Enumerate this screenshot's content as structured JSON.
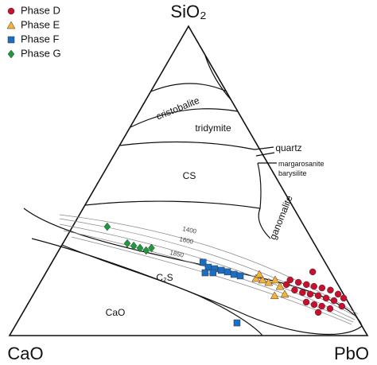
{
  "chart_data": {
    "type": "ternary",
    "vertex_labels": [
      "SiO₂",
      "CaO",
      "PbO"
    ],
    "annotations": [
      "cristobalite",
      "tridymite",
      "quartz",
      "CS",
      "margarosanite",
      "barysilite",
      "ganomalite",
      "C₂S",
      "CaO",
      "1400",
      "1600",
      "1850"
    ],
    "series": [
      {
        "name": "Phase D",
        "color": "#c8102e",
        "marker": "circle",
        "values": [
          [
            20.6,
            5.0,
            74.4
          ],
          [
            18.0,
            12.6,
            69.4
          ],
          [
            17.2,
            10.7,
            72.1
          ],
          [
            16.5,
            8.8,
            74.7
          ],
          [
            15.9,
            7.0,
            77.1
          ],
          [
            15.4,
            5.0,
            79.6
          ],
          [
            14.7,
            3.0,
            82.3
          ],
          [
            13.4,
            1.5,
            85.1
          ],
          [
            14.7,
            13.0,
            72.3
          ],
          [
            13.9,
            11.2,
            74.9
          ],
          [
            13.4,
            9.3,
            77.3
          ],
          [
            12.9,
            7.3,
            79.8
          ],
          [
            12.1,
            5.5,
            82.4
          ],
          [
            11.3,
            3.7,
            85.0
          ],
          [
            10.8,
            11.7,
            77.5
          ],
          [
            10.0,
            9.9,
            80.1
          ],
          [
            9.5,
            8.0,
            82.5
          ],
          [
            8.7,
            6.1,
            85.2
          ],
          [
            9.5,
            2.4,
            88.1
          ],
          [
            7.5,
            10.0,
            82.5
          ],
          [
            16.5,
            14.4,
            69.1
          ],
          [
            12.1,
            0.6,
            87.3
          ]
        ]
      },
      {
        "name": "Phase E",
        "color": "#f5b23a",
        "marker": "triangle",
        "values": [
          [
            18.5,
            21.9,
            59.6
          ],
          [
            18.0,
            20.3,
            61.7
          ],
          [
            17.2,
            19.0,
            63.8
          ],
          [
            18.0,
            16.8,
            65.2
          ],
          [
            15.9,
            16.5,
            67.6
          ],
          [
            12.9,
            19.5,
            67.6
          ],
          [
            13.4,
            16.4,
            70.2
          ],
          [
            19.8,
            20.3,
            59.9
          ]
        ]
      },
      {
        "name": "Phase F",
        "color": "#1a6fc4",
        "marker": "square",
        "values": [
          [
            23.7,
            34.1,
            42.2
          ],
          [
            22.1,
            33.4,
            44.5
          ],
          [
            21.6,
            31.9,
            46.5
          ],
          [
            21.1,
            30.3,
            48.6
          ],
          [
            20.6,
            28.8,
            50.6
          ],
          [
            19.8,
            27.4,
            52.8
          ],
          [
            19.3,
            25.9,
            54.8
          ],
          [
            20.3,
            33.0,
            46.7
          ],
          [
            20.3,
            35.2,
            44.5
          ],
          [
            4.1,
            34.4,
            61.5
          ]
        ]
      },
      {
        "name": "Phase G",
        "color": "#1e9a3c",
        "marker": "diamond",
        "values": [
          [
            35.2,
            55.1,
            9.7
          ],
          [
            29.8,
            52.2,
            18.0
          ],
          [
            29.0,
            50.8,
            20.2
          ],
          [
            28.3,
            49.4,
            22.3
          ],
          [
            27.5,
            48.1,
            24.4
          ],
          [
            28.3,
            46.2,
            25.5
          ]
        ]
      }
    ]
  }
}
